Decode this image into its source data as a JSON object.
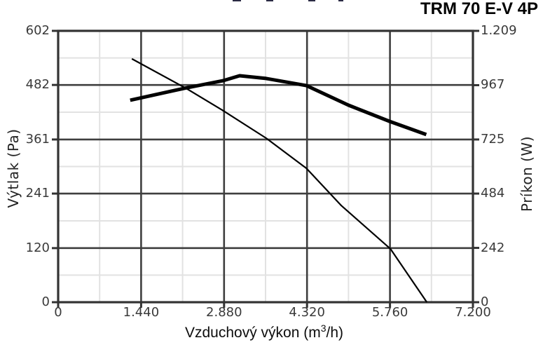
{
  "page": {
    "title": "TRM 70 E-V 4P"
  },
  "chart_data": {
    "type": "line",
    "title": "TRM 70 E-V 4P",
    "xlabel": "Vzduchový výkon (m³/h)",
    "xlabel_parts": {
      "pre": "Vzduchový výkon (m",
      "sup": "3",
      "post": "/h)"
    },
    "ylabel_left": "Výtlak (Pa)",
    "ylabel_right": "Príkon (W)",
    "xlim": [
      0,
      7200
    ],
    "ylim_left": [
      0,
      602
    ],
    "ylim_right": [
      0,
      1209
    ],
    "x_ticks": [
      0,
      1440,
      2880,
      4320,
      5760,
      7200
    ],
    "x_tick_labels": [
      "0",
      "1.440",
      "2.880",
      "4.320",
      "5.760",
      "7.200"
    ],
    "y_left_ticks": [
      0,
      120,
      241,
      361,
      482,
      602
    ],
    "y_left_tick_labels": [
      "0",
      "120",
      "241",
      "361",
      "482",
      "602"
    ],
    "y_right_ticks": [
      0,
      242,
      484,
      725,
      967,
      1209
    ],
    "y_right_tick_labels": [
      "0",
      "242",
      "484",
      "725",
      "967",
      "1.209"
    ],
    "grid": "major+minor",
    "legend": "none",
    "series": [
      {
        "name": "Výtlak (Pa)",
        "axis": "left",
        "style": "thin",
        "x": [
          1280,
          2240,
          2850,
          3610,
          4310,
          4910,
          5770,
          6400
        ],
        "y": [
          540,
          473,
          426,
          364,
          297,
          215,
          118,
          0
        ]
      },
      {
        "name": "Príkon (W)",
        "axis": "right",
        "style": "thick",
        "x": [
          1250,
          2190,
          2860,
          3150,
          3610,
          4310,
          5040,
          5750,
          6390
        ],
        "y": [
          900,
          953,
          987,
          1009,
          997,
          965,
          878,
          806,
          747
        ]
      }
    ],
    "colors": {
      "curve": "#000000",
      "grid_major": "#3f3f3f",
      "grid_minor": "#e2e2e2",
      "border": "#333333",
      "tick_text": "#3a3a3a"
    }
  }
}
